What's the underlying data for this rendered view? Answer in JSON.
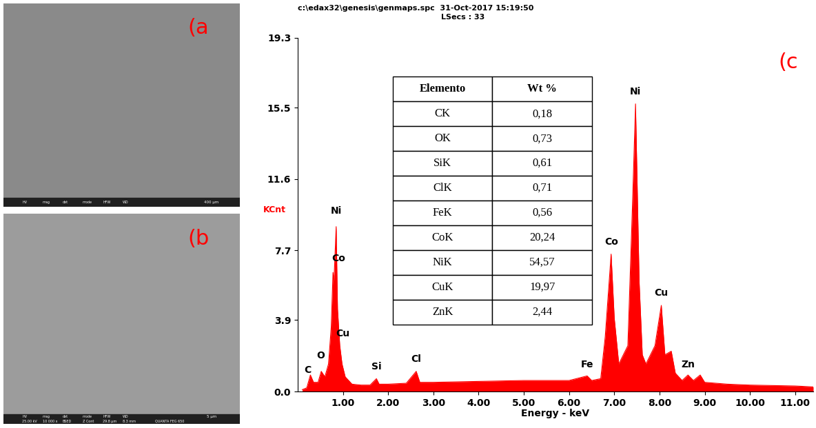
{
  "images": [
    {
      "label": "(a",
      "info_header": [
        "HV",
        "mag",
        "det",
        "mode",
        "HFW",
        "WD"
      ],
      "scale_bar": "400 μm"
    },
    {
      "label": "(b",
      "info_header": [
        "HV",
        "mag",
        "det",
        "mode",
        "HFW",
        "WD"
      ],
      "info_values": [
        "25.00 kV",
        "10 000 x",
        "BSED",
        "Z Cont",
        "29.8 μm",
        "8.3 mm"
      ],
      "instrument": "QUANTA FEG 650",
      "scale_bar": "5 μm"
    }
  ],
  "chart_data": {
    "type": "area",
    "panel_label": "(c",
    "title": "c:\\edax32\\genesis\\genmaps.spc  31-Oct-2017 15:19:50",
    "subtitle": "LSecs : 33",
    "y_label": "KCnt",
    "x_label": "Energy - keV",
    "color": "#ff0000",
    "x": [
      0.1,
      0.2,
      0.28,
      0.35,
      0.45,
      0.52,
      0.6,
      0.68,
      0.74,
      0.78,
      0.8,
      0.85,
      0.88,
      0.93,
      0.98,
      1.05,
      1.2,
      1.4,
      1.6,
      1.74,
      1.8,
      2.0,
      2.4,
      2.62,
      2.7,
      3.0,
      4.0,
      5.0,
      6.0,
      6.4,
      6.5,
      6.7,
      6.8,
      6.93,
      7.0,
      7.1,
      7.3,
      7.4,
      7.47,
      7.55,
      7.62,
      7.7,
      7.9,
      8.04,
      8.12,
      8.26,
      8.35,
      8.5,
      8.63,
      8.75,
      8.9,
      9.0,
      9.5,
      10.0,
      11.0,
      11.4
    ],
    "values": [
      0.1,
      0.2,
      0.9,
      0.5,
      0.5,
      1.1,
      0.8,
      1.5,
      3.5,
      6.5,
      6.0,
      9.0,
      4.5,
      2.5,
      1.5,
      0.8,
      0.4,
      0.35,
      0.35,
      0.7,
      0.4,
      0.4,
      0.45,
      1.1,
      0.5,
      0.5,
      0.55,
      0.6,
      0.6,
      0.85,
      0.6,
      0.7,
      3.0,
      7.5,
      4.0,
      1.5,
      2.5,
      10.0,
      15.7,
      6.0,
      2.0,
      1.5,
      2.5,
      4.7,
      2.0,
      2.2,
      1.0,
      0.6,
      0.9,
      0.6,
      0.9,
      0.5,
      0.4,
      0.35,
      0.3,
      0.25
    ],
    "xlim": [
      0,
      11.4
    ],
    "xticks": [
      {
        "value": 1,
        "label": "1.00"
      },
      {
        "value": 2,
        "label": "2.00"
      },
      {
        "value": 3,
        "label": "3.00"
      },
      {
        "value": 4,
        "label": "4.00"
      },
      {
        "value": 5,
        "label": "5.00"
      },
      {
        "value": 6,
        "label": "6.00"
      },
      {
        "value": 7,
        "label": "7.00"
      },
      {
        "value": 8,
        "label": "8.00"
      },
      {
        "value": 9,
        "label": "9.00"
      },
      {
        "value": 10,
        "label": "10.00"
      },
      {
        "value": 11,
        "label": "11.00"
      }
    ],
    "ylim": [
      0,
      19.3
    ],
    "yticks": [
      {
        "value": 0,
        "label": "0.0"
      },
      3.9,
      7.7,
      11.6,
      15.5,
      19.3
    ],
    "annotations": [
      {
        "text": "C",
        "x": 0.22,
        "y": 0.9
      },
      {
        "text": "O",
        "x": 0.5,
        "y": 1.7
      },
      {
        "text": "Ni",
        "x": 0.85,
        "y": 9.6
      },
      {
        "text": "Co",
        "x": 0.9,
        "y": 7.0
      },
      {
        "text": "Cu",
        "x": 1.0,
        "y": 2.9
      },
      {
        "text": "Si",
        "x": 1.74,
        "y": 1.1
      },
      {
        "text": "Cl",
        "x": 2.62,
        "y": 1.5
      },
      {
        "text": "Fe",
        "x": 6.4,
        "y": 1.2
      },
      {
        "text": "Co",
        "x": 6.93,
        "y": 7.9
      },
      {
        "text": "Ni",
        "x": 7.47,
        "y": 16.1
      },
      {
        "text": "Cu",
        "x": 8.04,
        "y": 5.1
      },
      {
        "text": "Zn",
        "x": 8.63,
        "y": 1.2
      }
    ],
    "table": {
      "columns": [
        "Elemento",
        "Wt %"
      ],
      "rows": [
        [
          "CK",
          "0,18"
        ],
        [
          "OK",
          "0,73"
        ],
        [
          "SiK",
          "0,61"
        ],
        [
          "ClK",
          "0,71"
        ],
        [
          "FeK",
          "0,56"
        ],
        [
          "CoK",
          "20,24"
        ],
        [
          "NiK",
          "54,57"
        ],
        [
          "CuK",
          "19,97"
        ],
        [
          "ZnK",
          "2,44"
        ]
      ]
    }
  }
}
